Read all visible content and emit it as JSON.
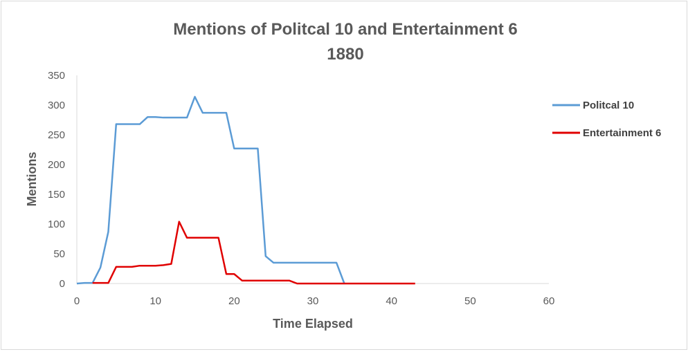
{
  "chart_data": {
    "type": "line",
    "title": "Mentions of Politcal 10 and Entertainment 6",
    "subtitle": "1880",
    "xlabel": "Time Elapsed",
    "ylabel": "Mentions",
    "xlim": [
      0,
      60
    ],
    "ylim": [
      0,
      350
    ],
    "x_ticks": [
      0,
      10,
      20,
      30,
      40,
      50,
      60
    ],
    "y_ticks": [
      0,
      50,
      100,
      150,
      200,
      250,
      300,
      350
    ],
    "grid": false,
    "legend_position": "right",
    "series": [
      {
        "name": "Politcal 10",
        "color": "#5b9bd5",
        "x": [
          0,
          1,
          2,
          3,
          4,
          5,
          6,
          7,
          8,
          9,
          10,
          11,
          12,
          13,
          14,
          15,
          16,
          17,
          18,
          19,
          20,
          21,
          22,
          23,
          24,
          25,
          26,
          27,
          28,
          29,
          30,
          31,
          32,
          33,
          34
        ],
        "y": [
          0,
          1,
          1,
          27,
          87,
          268,
          268,
          268,
          268,
          280,
          280,
          279,
          279,
          279,
          279,
          314,
          287,
          287,
          287,
          287,
          227,
          227,
          227,
          227,
          46,
          35,
          35,
          35,
          35,
          35,
          35,
          35,
          35,
          35,
          0
        ]
      },
      {
        "name": "Entertainment 6",
        "color": "#e00000",
        "x": [
          2,
          3,
          4,
          5,
          6,
          7,
          8,
          9,
          10,
          11,
          12,
          13,
          14,
          15,
          16,
          17,
          18,
          19,
          20,
          21,
          22,
          23,
          24,
          25,
          26,
          27,
          28,
          29,
          30,
          31,
          32,
          33,
          34,
          35,
          36,
          37,
          38,
          39,
          40,
          41,
          42,
          43
        ],
        "y": [
          1,
          1,
          1,
          28,
          28,
          28,
          30,
          30,
          30,
          31,
          33,
          104,
          77,
          77,
          77,
          77,
          77,
          16,
          16,
          5,
          5,
          5,
          5,
          5,
          5,
          5,
          0,
          0,
          0,
          0,
          0,
          0,
          0,
          0,
          0,
          0,
          0,
          0,
          0,
          0,
          0,
          0
        ]
      }
    ]
  }
}
